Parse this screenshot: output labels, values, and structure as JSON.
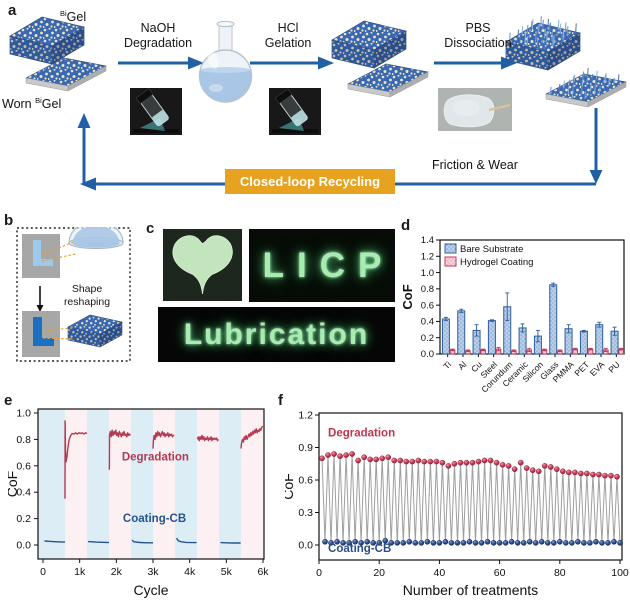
{
  "panel_letters": {
    "a": "a",
    "b": "b",
    "c": "c",
    "d": "d",
    "e": "e",
    "f": "f"
  },
  "panel_a": {
    "gel_sup": "Bi",
    "gel_base": "Gel",
    "worn_prefix": "Worn ",
    "worn_sup": "Bi",
    "worn_base": "Gel",
    "step1": "NaOH\nDegradation",
    "step2": "HCl\nGelation",
    "step3": "PBS\nDissociation",
    "friction_label": "Friction & Wear",
    "recycle_label": "Closed-loop Recycling",
    "colors": {
      "arrow": "#2160a4",
      "recycle_bg": "#e7a21f",
      "recycle_text": "#ffffff",
      "gel_blue": "#3a69b2",
      "gel_pore": "#eae4c9"
    }
  },
  "panel_b": {
    "reshape_label": "Shape\nreshaping"
  },
  "panel_c": {
    "text1": "LICP",
    "text2": "Lubrication",
    "glow": "#a8ecb2"
  },
  "chart_data": [
    {
      "panel": "d",
      "type": "bar",
      "ylabel": "CoF",
      "ylim": [
        0,
        1.4
      ],
      "yticks": [
        "0.0",
        "0.2",
        "0.4",
        "0.6",
        "0.8",
        "1.0",
        "1.2",
        "1.4"
      ],
      "categories": [
        "Ti",
        "Al",
        "Cu",
        "Steel",
        "Corundum",
        "Ceramic",
        "Silicon",
        "Glass",
        "PMMA",
        "PET",
        "EVA",
        "PU"
      ],
      "series": [
        {
          "name": "Bare Substrate",
          "fill": "#b9cfe9",
          "dot": "#6e95c5",
          "edge": "#2f5d99",
          "values": [
            0.43,
            0.53,
            0.29,
            0.41,
            0.58,
            0.32,
            0.22,
            0.85,
            0.31,
            0.28,
            0.36,
            0.28
          ],
          "errors": [
            0.02,
            0.02,
            0.07,
            0.01,
            0.17,
            0.05,
            0.07,
            0.02,
            0.05,
            0.01,
            0.03,
            0.05
          ]
        },
        {
          "name": "Hydrogel Coating",
          "fill": "#f8d0d8",
          "dot": "#dc92a4",
          "edge": "#c23a5c",
          "values": [
            0.05,
            0.04,
            0.05,
            0.06,
            0.04,
            0.05,
            0.05,
            0.04,
            0.06,
            0.06,
            0.05,
            0.06
          ],
          "errors": [
            0.01,
            0.01,
            0.01,
            0.02,
            0.01,
            0.02,
            0.01,
            0.01,
            0.01,
            0.01,
            0.02,
            0.01
          ]
        }
      ]
    },
    {
      "panel": "e",
      "type": "line",
      "xlabel": "Cycle",
      "ylabel": "CoF",
      "xlim": [
        0,
        6000
      ],
      "ylim": [
        0,
        1.0
      ],
      "xticks": [
        {
          "v": 0,
          "label": "0"
        },
        {
          "v": 1000,
          "label": "1k"
        },
        {
          "v": 2000,
          "label": "2k"
        },
        {
          "v": 3000,
          "label": "3k"
        },
        {
          "v": 4000,
          "label": "4k"
        },
        {
          "v": 5000,
          "label": "5k"
        },
        {
          "v": 6000,
          "label": "6k"
        }
      ],
      "yticks": [
        "0.0",
        "0.2",
        "0.4",
        "0.6",
        "0.8",
        "1.0"
      ],
      "bands": {
        "period": 600,
        "colors": [
          "#dcedf6",
          "#fdf0f2"
        ]
      },
      "series": [
        {
          "name": "Degradation",
          "color": "#b23a52",
          "label_x": 2150,
          "label_y": 0.64,
          "segments": [
            [
              [
                600,
                0.35
              ],
              [
                603,
                0.94
              ],
              [
                615,
                0.72
              ],
              [
                630,
                0.63
              ],
              [
                655,
                0.67
              ],
              [
                685,
                0.75
              ],
              [
                715,
                0.8
              ],
              [
                755,
                0.83
              ],
              [
                800,
                0.845
              ],
              [
                845,
                0.84
              ],
              [
                890,
                0.85
              ],
              [
                935,
                0.84
              ],
              [
                980,
                0.85
              ],
              [
                1025,
                0.845
              ],
              [
                1070,
                0.85
              ],
              [
                1115,
                0.84
              ],
              [
                1160,
                0.85
              ],
              [
                1200,
                0.845
              ]
            ],
            [
              [
                1810,
                0.57
              ],
              [
                1813,
                0.83
              ],
              [
                1835,
                0.86
              ],
              [
                1860,
                0.82
              ],
              [
                1885,
                0.87
              ],
              [
                1910,
                0.83
              ],
              [
                1935,
                0.86
              ],
              [
                1960,
                0.84
              ],
              [
                1985,
                0.87
              ],
              [
                2010,
                0.83
              ],
              [
                2035,
                0.85
              ],
              [
                2060,
                0.82
              ],
              [
                2085,
                0.86
              ],
              [
                2110,
                0.84
              ],
              [
                2135,
                0.82
              ],
              [
                2160,
                0.85
              ],
              [
                2185,
                0.83
              ],
              [
                2210,
                0.86
              ],
              [
                2235,
                0.83
              ],
              [
                2260,
                0.84
              ],
              [
                2285,
                0.82
              ],
              [
                2310,
                0.85
              ],
              [
                2335,
                0.83
              ],
              [
                2360,
                0.84
              ],
              [
                2385,
                0.83
              ]
            ],
            [
              [
                3000,
                0.73
              ],
              [
                3010,
                0.79
              ],
              [
                3030,
                0.83
              ],
              [
                3055,
                0.8
              ],
              [
                3080,
                0.85
              ],
              [
                3105,
                0.82
              ],
              [
                3130,
                0.86
              ],
              [
                3155,
                0.83
              ],
              [
                3180,
                0.85
              ],
              [
                3205,
                0.82
              ],
              [
                3230,
                0.84
              ],
              [
                3255,
                0.86
              ],
              [
                3280,
                0.83
              ],
              [
                3305,
                0.85
              ],
              [
                3330,
                0.82
              ],
              [
                3355,
                0.84
              ],
              [
                3380,
                0.83
              ],
              [
                3405,
                0.85
              ],
              [
                3430,
                0.82
              ],
              [
                3455,
                0.84
              ],
              [
                3480,
                0.83
              ],
              [
                3505,
                0.84
              ],
              [
                3530,
                0.82
              ],
              [
                3555,
                0.83
              ],
              [
                3580,
                0.83
              ]
            ],
            [
              [
                4210,
                0.8
              ],
              [
                4235,
                0.82
              ],
              [
                4260,
                0.79
              ],
              [
                4285,
                0.82
              ],
              [
                4310,
                0.8
              ],
              [
                4335,
                0.83
              ],
              [
                4360,
                0.8
              ],
              [
                4385,
                0.82
              ],
              [
                4410,
                0.79
              ],
              [
                4435,
                0.81
              ],
              [
                4460,
                0.8
              ],
              [
                4485,
                0.82
              ],
              [
                4510,
                0.79
              ],
              [
                4535,
                0.81
              ],
              [
                4560,
                0.8
              ],
              [
                4585,
                0.82
              ],
              [
                4610,
                0.79
              ],
              [
                4635,
                0.81
              ],
              [
                4660,
                0.8
              ],
              [
                4685,
                0.81
              ],
              [
                4710,
                0.8
              ],
              [
                4735,
                0.81
              ],
              [
                4760,
                0.79
              ],
              [
                4785,
                0.8
              ]
            ],
            [
              [
                5400,
                0.73
              ],
              [
                5415,
                0.77
              ],
              [
                5440,
                0.8
              ],
              [
                5465,
                0.78
              ],
              [
                5490,
                0.82
              ],
              [
                5515,
                0.8
              ],
              [
                5540,
                0.83
              ],
              [
                5565,
                0.8
              ],
              [
                5590,
                0.82
              ],
              [
                5615,
                0.84
              ],
              [
                5640,
                0.82
              ],
              [
                5665,
                0.85
              ],
              [
                5690,
                0.83
              ],
              [
                5715,
                0.86
              ],
              [
                5740,
                0.84
              ],
              [
                5765,
                0.87
              ],
              [
                5790,
                0.85
              ],
              [
                5815,
                0.88
              ],
              [
                5840,
                0.85
              ],
              [
                5865,
                0.87
              ],
              [
                5890,
                0.86
              ],
              [
                5915,
                0.88
              ],
              [
                5940,
                0.87
              ],
              [
                5965,
                0.89
              ],
              [
                5990,
                0.9
              ]
            ]
          ]
        },
        {
          "name": "Coating-CB",
          "color": "#27538f",
          "label_x": 2180,
          "label_y": 0.175,
          "segments": [
            [
              [
                40,
                0.03
              ],
              [
                200,
                0.027
              ],
              [
                400,
                0.024
              ],
              [
                600,
                0.022
              ]
            ],
            [
              [
                1230,
                0.026
              ],
              [
                1450,
                0.022
              ],
              [
                1700,
                0.02
              ],
              [
                1800,
                0.02
              ]
            ],
            [
              [
                2430,
                0.036
              ],
              [
                2480,
                0.024
              ],
              [
                2650,
                0.019
              ],
              [
                2850,
                0.017
              ],
              [
                3000,
                0.017
              ]
            ],
            [
              [
                3640,
                0.052
              ],
              [
                3690,
                0.032
              ],
              [
                3760,
                0.025
              ],
              [
                3900,
                0.02
              ],
              [
                4100,
                0.018
              ],
              [
                4190,
                0.018
              ]
            ],
            [
              [
                4840,
                0.018
              ],
              [
                5050,
                0.016
              ],
              [
                5250,
                0.015
              ],
              [
                5390,
                0.015
              ]
            ]
          ]
        }
      ]
    },
    {
      "panel": "f",
      "type": "scatter-line",
      "xlabel": "Number of treatments",
      "ylabel": "CoF",
      "xlim": [
        0,
        100
      ],
      "ylim": [
        0,
        1.2
      ],
      "yticks": [
        "0.0",
        "0.3",
        "0.6",
        "0.9",
        "1.2"
      ],
      "xticks": [
        "0",
        "20",
        "40",
        "60",
        "80",
        "100"
      ],
      "connector_color": "#9f9f9f",
      "series": [
        {
          "name": "Degradation",
          "hi": "#f09cab",
          "main": "#c23550",
          "dark": "#8e1f38",
          "x_start": 1,
          "x_step": 2,
          "label_at": [
            3,
            1.0
          ],
          "values": [
            0.8,
            0.83,
            0.84,
            0.82,
            0.83,
            0.84,
            0.78,
            0.81,
            0.79,
            0.79,
            0.8,
            0.81,
            0.78,
            0.78,
            0.77,
            0.77,
            0.78,
            0.77,
            0.77,
            0.77,
            0.76,
            0.73,
            0.75,
            0.76,
            0.76,
            0.76,
            0.77,
            0.78,
            0.78,
            0.76,
            0.74,
            0.73,
            0.7,
            0.76,
            0.71,
            0.69,
            0.68,
            0.73,
            0.72,
            0.7,
            0.68,
            0.67,
            0.67,
            0.66,
            0.66,
            0.65,
            0.65,
            0.64,
            0.64,
            0.63
          ]
        },
        {
          "name": "Coating-CB",
          "hi": "#7e9cd8",
          "main": "#2c4b8c",
          "dark": "#132a52",
          "x_start": 2,
          "x_step": 2,
          "label_at": [
            3,
            -0.065
          ],
          "values": [
            0.03,
            0.02,
            0.03,
            0.02,
            0.02,
            0.03,
            0.02,
            0.03,
            0.02,
            0.02,
            0.04,
            0.02,
            0.02,
            0.02,
            0.03,
            0.02,
            0.02,
            0.03,
            0.02,
            0.02,
            0.03,
            0.02,
            0.02,
            0.02,
            0.03,
            0.02,
            0.02,
            0.03,
            0.02,
            0.02,
            0.02,
            0.03,
            0.02,
            0.02,
            0.03,
            0.02,
            0.03,
            0.02,
            0.02,
            0.03,
            0.02,
            0.02,
            0.03,
            0.02,
            0.02,
            0.03,
            0.02,
            0.02,
            0.03,
            0.02
          ]
        }
      ]
    }
  ]
}
